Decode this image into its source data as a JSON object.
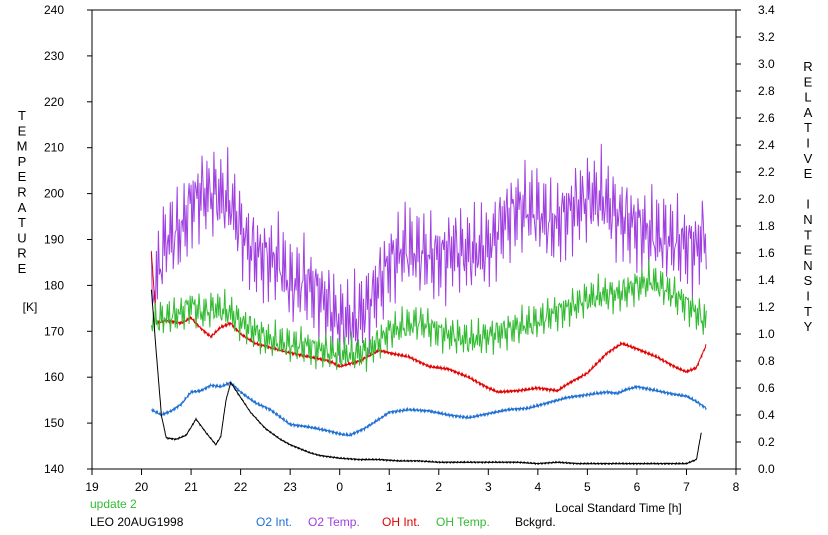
{
  "chart_data": {
    "type": "line",
    "xlabel": "Local Standard Time [h]",
    "ylabel_left_letters": [
      "T",
      "E",
      "M",
      "P",
      "E",
      "R",
      "A",
      "T",
      "U",
      "R",
      "E"
    ],
    "ylabel_left_unit": "[K]",
    "ylabel_right_letters": [
      "R",
      "E",
      "L",
      "A",
      "T",
      "I",
      "V",
      "E",
      "",
      "I",
      "N",
      "T",
      "E",
      "N",
      "S",
      "I",
      "T",
      "Y"
    ],
    "x_ticks": [
      "19",
      "20",
      "21",
      "22",
      "23",
      "0",
      "1",
      "2",
      "3",
      "4",
      "5",
      "6",
      "7",
      "8"
    ],
    "y_left_ticks": [
      "140",
      "150",
      "160",
      "170",
      "180",
      "190",
      "200",
      "210",
      "220",
      "230",
      "240"
    ],
    "y_right_ticks": [
      "0.0",
      "0.2",
      "0.4",
      "0.6",
      "0.8",
      "1.0",
      "1.2",
      "1.4",
      "1.6",
      "1.8",
      "2.0",
      "2.2",
      "2.4",
      "2.6",
      "2.8",
      "3.0",
      "3.2",
      "3.4"
    ],
    "xlim": [
      19,
      32
    ],
    "ylim_left": [
      140,
      240
    ],
    "ylim_right": [
      0,
      3.4
    ],
    "grid": false,
    "update_note": "update 2",
    "station_label": "LEO 20AUG1998",
    "series": [
      {
        "name": "O2 Int.",
        "axis": "right",
        "color": "#1c6fd0",
        "x": [
          20.2,
          20.4,
          20.6,
          20.8,
          21.0,
          21.2,
          21.4,
          21.6,
          21.8,
          22.0,
          22.3,
          22.6,
          23.0,
          23.4,
          23.8,
          24.0,
          24.2,
          24.5,
          24.8,
          25.0,
          25.4,
          25.8,
          26.2,
          26.6,
          27.0,
          27.4,
          27.8,
          28.2,
          28.6,
          29.0,
          29.4,
          29.6,
          29.8,
          30.0,
          30.4,
          30.8,
          31.0,
          31.2,
          31.4
        ],
        "y": [
          0.44,
          0.4,
          0.43,
          0.48,
          0.57,
          0.58,
          0.62,
          0.61,
          0.64,
          0.57,
          0.49,
          0.44,
          0.33,
          0.31,
          0.28,
          0.26,
          0.25,
          0.3,
          0.37,
          0.42,
          0.44,
          0.43,
          0.4,
          0.38,
          0.41,
          0.44,
          0.45,
          0.49,
          0.53,
          0.55,
          0.57,
          0.56,
          0.59,
          0.61,
          0.58,
          0.55,
          0.54,
          0.5,
          0.45
        ]
      },
      {
        "name": "O2 Temp.",
        "axis": "left",
        "color": "#a040e0",
        "x": [
          20.2,
          20.5,
          20.8,
          21.0,
          21.2,
          21.5,
          21.8,
          22.0,
          22.2,
          22.5,
          22.8,
          23.0,
          23.3,
          23.6,
          24.0,
          24.3,
          24.6,
          25.0,
          25.3,
          25.6,
          26.0,
          26.3,
          26.6,
          27.0,
          27.3,
          27.6,
          28.0,
          28.3,
          28.6,
          29.0,
          29.3,
          29.6,
          30.0,
          30.3,
          30.6,
          31.0,
          31.2,
          31.4
        ],
        "y": [
          177,
          190,
          192,
          198,
          200,
          200,
          198,
          192,
          188,
          186,
          185,
          180,
          181,
          178,
          172,
          172,
          176,
          185,
          188,
          187,
          186,
          188,
          187,
          188,
          194,
          197,
          196,
          193,
          196,
          199,
          199,
          195,
          193,
          191,
          190,
          189,
          188,
          192
        ]
      },
      {
        "name": "OH Int.",
        "axis": "right",
        "color": "#e00000",
        "x": [
          20.2,
          20.3,
          20.5,
          20.8,
          21.0,
          21.2,
          21.4,
          21.6,
          21.8,
          22.0,
          22.3,
          22.6,
          23.0,
          23.4,
          23.8,
          24.0,
          24.4,
          24.8,
          25.0,
          25.4,
          25.8,
          26.2,
          26.6,
          27.0,
          27.2,
          27.6,
          28.0,
          28.4,
          28.6,
          29.0,
          29.4,
          29.7,
          30.0,
          30.4,
          30.8,
          31.0,
          31.2,
          31.4
        ],
        "y": [
          1.6,
          1.08,
          1.1,
          1.08,
          1.12,
          1.04,
          0.98,
          1.05,
          1.08,
          1.0,
          0.93,
          0.9,
          0.86,
          0.83,
          0.8,
          0.76,
          0.8,
          0.88,
          0.86,
          0.83,
          0.76,
          0.74,
          0.68,
          0.6,
          0.57,
          0.58,
          0.6,
          0.58,
          0.63,
          0.71,
          0.86,
          0.93,
          0.89,
          0.83,
          0.75,
          0.72,
          0.75,
          0.92
        ]
      },
      {
        "name": "OH Temp.",
        "axis": "left",
        "color": "#33bb33",
        "x": [
          20.2,
          20.5,
          20.8,
          21.0,
          21.2,
          21.5,
          21.8,
          22.0,
          22.3,
          22.6,
          23.0,
          23.3,
          23.6,
          24.0,
          24.3,
          24.6,
          25.0,
          25.3,
          25.6,
          26.0,
          26.3,
          26.6,
          27.0,
          27.3,
          27.6,
          28.0,
          28.3,
          28.6,
          29.0,
          29.3,
          29.6,
          30.0,
          30.3,
          30.6,
          31.0,
          31.2,
          31.4
        ],
        "y": [
          172,
          173,
          174,
          176,
          174,
          175,
          174,
          172,
          170,
          168,
          167,
          167,
          166,
          165,
          165,
          166,
          170,
          171,
          172,
          170,
          169,
          168,
          169,
          170,
          171,
          172,
          174,
          175,
          177,
          178,
          178,
          180,
          181,
          179,
          176,
          174,
          172
        ]
      },
      {
        "name": "Bckgrd.",
        "axis": "right",
        "color": "#000000",
        "x": [
          20.2,
          20.3,
          20.4,
          20.5,
          20.7,
          20.9,
          21.1,
          21.3,
          21.5,
          21.6,
          21.7,
          21.8,
          22.0,
          22.2,
          22.5,
          22.8,
          23.0,
          23.2,
          23.4,
          23.6,
          23.8,
          24.0,
          24.4,
          24.8,
          25.2,
          25.6,
          26.0,
          26.4,
          26.8,
          27.2,
          27.6,
          28.0,
          28.4,
          28.8,
          29.2,
          29.6,
          30.0,
          30.4,
          30.8,
          31.0,
          31.2,
          31.3
        ],
        "y": [
          1.33,
          0.85,
          0.4,
          0.23,
          0.22,
          0.25,
          0.37,
          0.27,
          0.18,
          0.24,
          0.5,
          0.64,
          0.53,
          0.42,
          0.3,
          0.22,
          0.18,
          0.15,
          0.12,
          0.1,
          0.09,
          0.08,
          0.07,
          0.07,
          0.06,
          0.06,
          0.05,
          0.05,
          0.05,
          0.05,
          0.05,
          0.04,
          0.05,
          0.04,
          0.04,
          0.04,
          0.04,
          0.04,
          0.04,
          0.04,
          0.07,
          0.27
        ]
      }
    ]
  }
}
